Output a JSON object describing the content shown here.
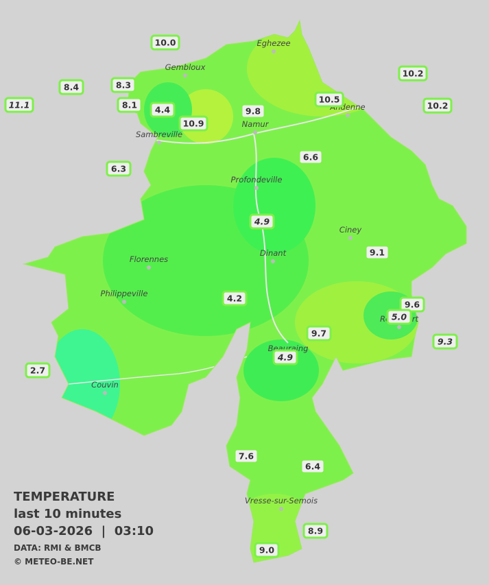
{
  "towns": [
    "Eghezee",
    "Gembloux",
    "Andenne",
    "Namur",
    "Sambreville",
    "Profondeville",
    "Ciney",
    "Dinant",
    "Florennes",
    "Philippeville",
    "Rochefort",
    "Beauraing",
    "Couvin",
    "Vresse-sur-Semois"
  ],
  "stations": [
    {
      "label": "10.0"
    },
    {
      "label": "8.4"
    },
    {
      "label": "8.3"
    },
    {
      "label": "11.1",
      "italic": true
    },
    {
      "label": "8.1"
    },
    {
      "label": "4.4"
    },
    {
      "label": "10.9"
    },
    {
      "label": "9.8"
    },
    {
      "label": "10.5"
    },
    {
      "label": "10.2"
    },
    {
      "label": "10.2"
    },
    {
      "label": "6.3"
    },
    {
      "label": "6.6"
    },
    {
      "label": "4.9",
      "italic": true
    },
    {
      "label": "9.1"
    },
    {
      "label": "4.2"
    },
    {
      "label": "9.6"
    },
    {
      "label": "5.0",
      "italic": true
    },
    {
      "label": "9.7"
    },
    {
      "label": "4.9",
      "italic": true
    },
    {
      "label": "9.3",
      "italic": true
    },
    {
      "label": "2.7"
    },
    {
      "label": "7.6"
    },
    {
      "label": "6.4"
    },
    {
      "label": "8.9"
    },
    {
      "label": "9.0"
    }
  ],
  "legend": {
    "title": "TEMPERATURE",
    "subtitle": "last 10 minutes",
    "datetime": "06-03-2026  |  03:10",
    "source": "DATA: RMI & BMCB",
    "copyright": "© METEO-BE.NET"
  }
}
